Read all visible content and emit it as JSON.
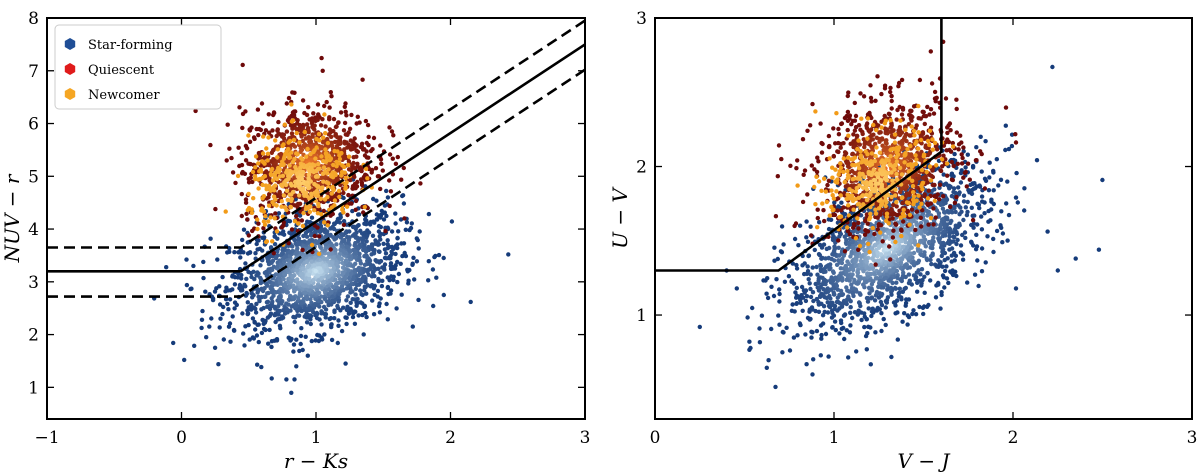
{
  "colors": {
    "star_forming": "#1f4e96",
    "quiescent": "#8e1010",
    "newcomer": "#f5a623",
    "boundary": "#000000"
  },
  "chart_data": [
    {
      "type": "scatter",
      "xlabel": "r − Ks",
      "ylabel": "NUV − r",
      "xlim": [
        -1,
        3
      ],
      "ylim": [
        0.4,
        8
      ],
      "xticks": [
        -1,
        0,
        1,
        2,
        3
      ],
      "yticks": [
        1,
        2,
        3,
        4,
        5,
        6,
        7,
        8
      ],
      "legend": {
        "placement": "top-left",
        "entries": [
          {
            "label": "Star-forming",
            "color": "#1f4e96"
          },
          {
            "label": "Quiescent",
            "color": "#e01b1b"
          },
          {
            "label": "Newcomer",
            "color": "#f5a623"
          }
        ]
      },
      "series": [
        {
          "name": "Star-forming",
          "center": [
            1.0,
            3.2
          ],
          "spread": [
            0.32,
            0.55
          ],
          "tilt": 0.5,
          "count": 1700,
          "outliers": [
            [
              0.02,
              1.52
            ],
            [
              1.95,
              2.75
            ],
            [
              2.15,
              2.62
            ],
            [
              2.43,
              3.52
            ],
            [
              0.78,
              1.15
            ],
            [
              0.84,
              1.15
            ],
            [
              1.22,
              1.45
            ],
            [
              0.25,
              1.75
            ]
          ]
        },
        {
          "name": "Quiescent",
          "center": [
            0.95,
            5.25
          ],
          "spread": [
            0.25,
            0.55
          ],
          "tilt": 0.2,
          "count": 900,
          "outliers": [
            [
              1.05,
              7.0
            ],
            [
              0.5,
              3.88
            ],
            [
              0.48,
              4.5
            ]
          ]
        },
        {
          "name": "Newcomer",
          "center": [
            0.9,
            4.9
          ],
          "spread": [
            0.2,
            0.45
          ],
          "tilt": 0.3,
          "count": 350,
          "outliers": []
        }
      ],
      "boundaries": [
        {
          "style": "solid",
          "points": [
            [
              -1,
              3.2
            ],
            [
              0.44,
              3.2
            ],
            [
              3,
              7.5
            ]
          ]
        },
        {
          "style": "dashed",
          "points": [
            [
              -1,
              3.65
            ],
            [
              0.44,
              3.65
            ],
            [
              3,
              7.95
            ]
          ]
        },
        {
          "style": "dashed",
          "points": [
            [
              -1,
              2.72
            ],
            [
              0.44,
              2.72
            ],
            [
              3,
              7.02
            ]
          ]
        }
      ],
      "extended_boundaries": true
    },
    {
      "type": "scatter",
      "xlabel": "V − J",
      "ylabel": "U − V",
      "xlim": [
        0,
        3
      ],
      "ylim": [
        0.3,
        3
      ],
      "xticks": [
        0,
        1,
        2,
        3
      ],
      "yticks": [
        1,
        2,
        3
      ],
      "series": [
        {
          "name": "Star-forming",
          "center": [
            1.3,
            1.45
          ],
          "spread": [
            0.28,
            0.22
          ],
          "tilt": 0.55,
          "count": 1700,
          "outliers": [
            [
              0.4,
              1.3
            ],
            [
              0.25,
              0.92
            ],
            [
              2.35,
              1.38
            ],
            [
              2.48,
              1.44
            ],
            [
              2.22,
              2.67
            ],
            [
              0.88,
              0.6
            ],
            [
              0.97,
              0.72
            ],
            [
              2.25,
              1.3
            ]
          ]
        },
        {
          "name": "Quiescent",
          "center": [
            1.3,
            2.0
          ],
          "spread": [
            0.2,
            0.22
          ],
          "tilt": 0.2,
          "count": 900,
          "outliers": [
            [
              1.61,
              2.84
            ],
            [
              0.78,
              1.6
            ],
            [
              0.88,
              2.42
            ]
          ]
        },
        {
          "name": "Newcomer",
          "center": [
            1.25,
            1.9
          ],
          "spread": [
            0.15,
            0.17
          ],
          "tilt": 0.2,
          "count": 350,
          "outliers": []
        }
      ],
      "boundaries": [
        {
          "style": "solid",
          "points": [
            [
              0,
              1.3
            ],
            [
              0.69,
              1.3
            ],
            [
              1.6,
              2.1
            ],
            [
              1.6,
              3.0
            ]
          ]
        }
      ]
    }
  ]
}
